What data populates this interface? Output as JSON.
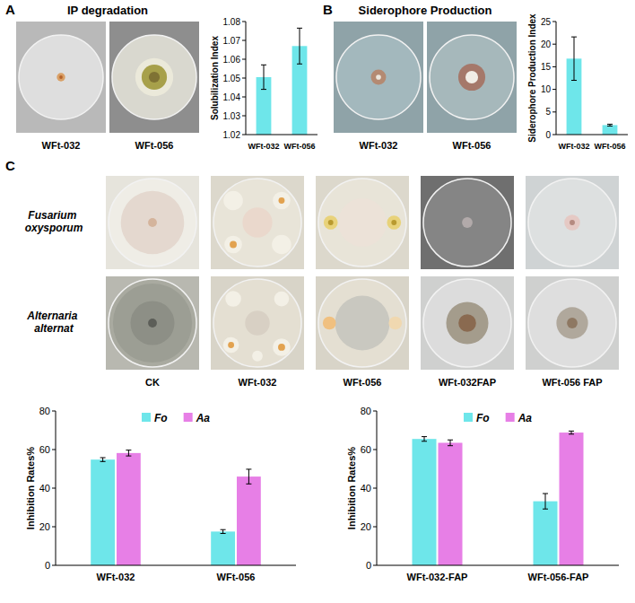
{
  "figure": {
    "panels": [
      {
        "letter": "A",
        "title": "IP degradation",
        "images": [
          "WFt-032",
          "WFt-056"
        ]
      },
      {
        "letter": "B",
        "title": "Siderophore Production",
        "images": [
          "WFt-032",
          "WFt-056"
        ]
      },
      {
        "letter": "C",
        "rows": [
          "Fusarium oxysporum",
          "Alternaria alternat"
        ],
        "columns": [
          "CK",
          "WFt-032",
          "WFt-056",
          "WFt-032FAP",
          "WFt-056 FAP"
        ]
      }
    ]
  },
  "chart_data": [
    {
      "type": "bar",
      "y_label": "Solubilization Index",
      "categories": [
        "WFt-032",
        "WFt-056"
      ],
      "values": [
        1.0505,
        1.067
      ],
      "errors": [
        0.0065,
        0.0095
      ],
      "color": "#6ee6ea",
      "ylim": [
        1.02,
        1.08
      ],
      "yticks": [
        1.02,
        1.03,
        1.04,
        1.05,
        1.06,
        1.07,
        1.08
      ]
    },
    {
      "type": "bar",
      "y_label": "Siderophore Production Index",
      "categories": [
        "WFt-032",
        "WFt-056"
      ],
      "values": [
        16.8,
        2.1
      ],
      "errors": [
        4.8,
        0.2
      ],
      "color": "#6ee6ea",
      "ylim": [
        0,
        25
      ],
      "yticks": [
        0,
        5,
        10,
        15,
        20,
        25
      ]
    },
    {
      "type": "bar",
      "y_label": "Inhibition Rates%",
      "categories": [
        "WFt-032",
        "WFt-056"
      ],
      "series": [
        {
          "name": "Fo",
          "color": "#6ee6ea",
          "values": [
            54.8,
            17.5
          ],
          "errors": [
            1.0,
            1.0
          ]
        },
        {
          "name": "Aa",
          "color": "#e77fe6",
          "values": [
            58.2,
            46.0
          ],
          "errors": [
            1.5,
            3.8
          ]
        }
      ],
      "legend": "top",
      "ylim": [
        0,
        80
      ],
      "yticks": [
        0,
        20,
        40,
        60,
        80
      ]
    },
    {
      "type": "bar",
      "y_label": "Inhibition Rates%",
      "categories": [
        "WFt-032-FAP",
        "WFt-056-FAP"
      ],
      "series": [
        {
          "name": "Fo",
          "color": "#6ee6ea",
          "values": [
            65.5,
            33.2
          ],
          "errors": [
            1.2,
            4.0
          ]
        },
        {
          "name": "Aa",
          "color": "#e77fe6",
          "values": [
            63.5,
            68.8
          ],
          "errors": [
            1.5,
            0.8
          ]
        }
      ],
      "legend": "top",
      "ylim": [
        0,
        80
      ],
      "yticks": [
        0,
        20,
        40,
        60,
        80
      ]
    }
  ]
}
